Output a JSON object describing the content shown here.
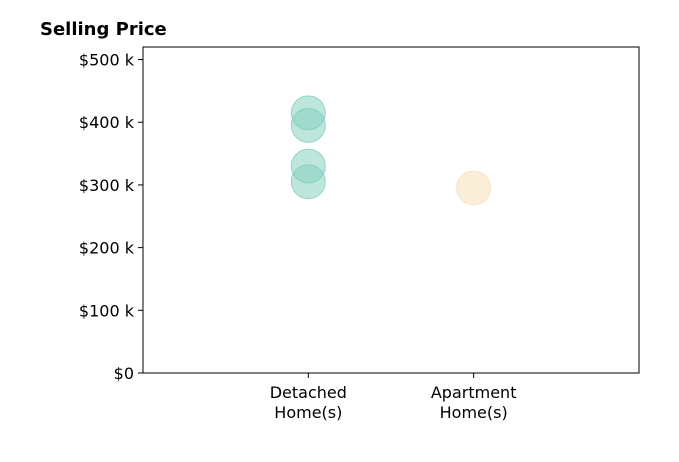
{
  "chart_data": {
    "type": "scatter",
    "title": "Selling Price",
    "xlabel": "",
    "ylabel": "",
    "categories": [
      [
        "Detached",
        "Home(s)"
      ],
      [
        "Apartment",
        "Home(s)"
      ]
    ],
    "y_ticks": [
      {
        "value": 0,
        "label": "$0"
      },
      {
        "value": 100000,
        "label": "$100 k"
      },
      {
        "value": 200000,
        "label": "$200 k"
      },
      {
        "value": 300000,
        "label": "$300 k"
      },
      {
        "value": 400000,
        "label": "$400 k"
      },
      {
        "value": 500000,
        "label": "$500 k"
      }
    ],
    "ylim": [
      0,
      520000
    ],
    "xlim": [
      -1,
      2
    ],
    "grid": false,
    "legend": "none",
    "series": [
      {
        "category_index": 0,
        "color": "#7fcdbb",
        "values": [
          415000,
          395000,
          330000,
          305000
        ]
      },
      {
        "category_index": 1,
        "color": "#f5deb3",
        "values": [
          295000
        ]
      }
    ]
  }
}
